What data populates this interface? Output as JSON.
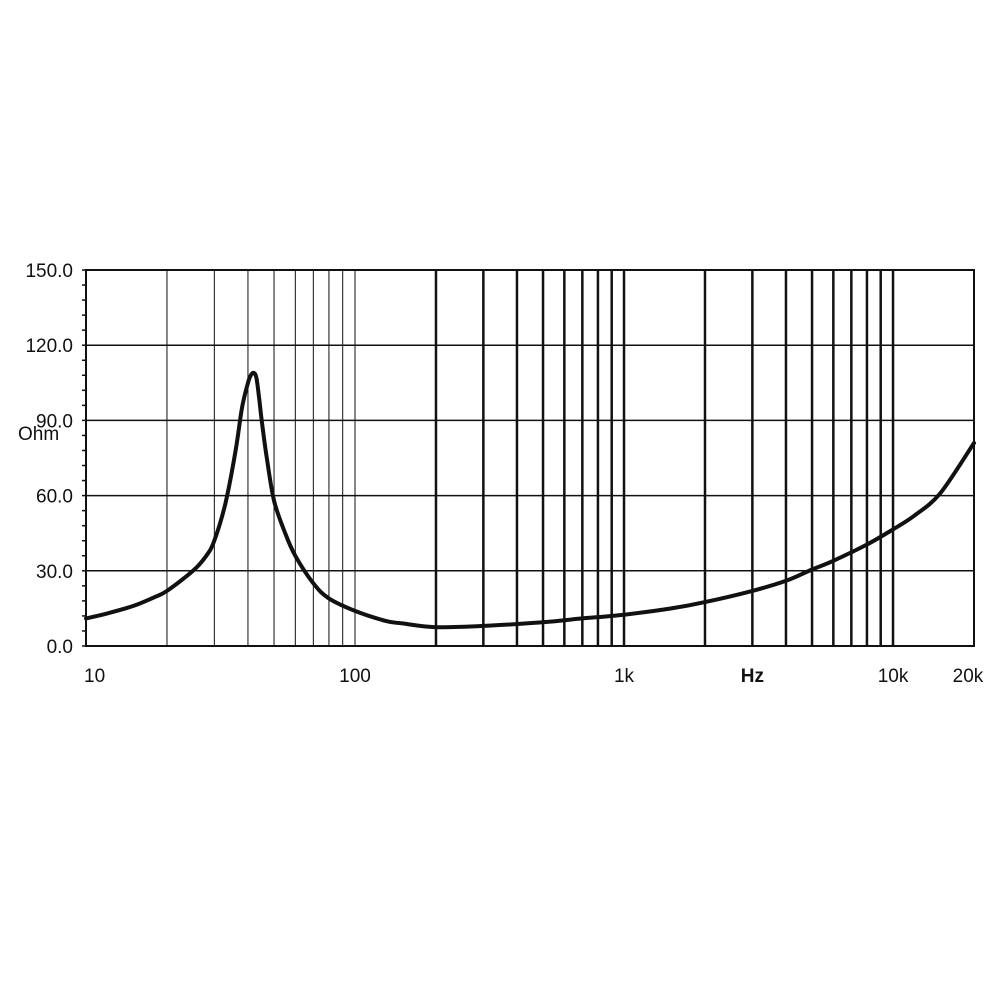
{
  "chart_data": {
    "type": "line",
    "title": "",
    "xlabel": "Hz",
    "ylabel": "Ohm",
    "xscale": "log",
    "xlim": [
      10,
      20000
    ],
    "ylim": [
      0,
      150
    ],
    "grid": true,
    "x_ticks": [
      {
        "value": 10,
        "label": "10"
      },
      {
        "value": 100,
        "label": "100"
      },
      {
        "value": 1000,
        "label": "1k"
      },
      {
        "value": 10000,
        "label": "10k"
      },
      {
        "value": 20000,
        "label": "20k"
      }
    ],
    "y_ticks": [
      {
        "value": 0,
        "label": "0.0"
      },
      {
        "value": 30,
        "label": "30.0"
      },
      {
        "value": 60,
        "label": "60.0"
      },
      {
        "value": 90,
        "label": "90.0"
      },
      {
        "value": 120,
        "label": "120.0"
      },
      {
        "value": 150,
        "label": "150.0"
      }
    ],
    "series": [
      {
        "x": [
          10,
          12,
          15,
          18,
          20,
          25,
          28,
          30,
          33,
          36,
          38,
          40,
          41,
          42,
          43,
          44,
          45,
          47,
          50,
          55,
          60,
          70,
          80,
          100,
          130,
          150,
          200,
          300,
          500,
          700,
          1000,
          1500,
          2000,
          3000,
          4000,
          5000,
          6000,
          8000,
          10000,
          12000,
          15000,
          20000
        ],
        "y": [
          11,
          13,
          16,
          19.5,
          22,
          30,
          36,
          42,
          57,
          78,
          95,
          105,
          108,
          109,
          107,
          99,
          90,
          75,
          58,
          45,
          36,
          25,
          19,
          14,
          10,
          9,
          7.5,
          8,
          9.5,
          11,
          12.5,
          15,
          17.5,
          22,
          26,
          30.5,
          34,
          40.5,
          46.5,
          52,
          61,
          81
        ]
      }
    ]
  }
}
